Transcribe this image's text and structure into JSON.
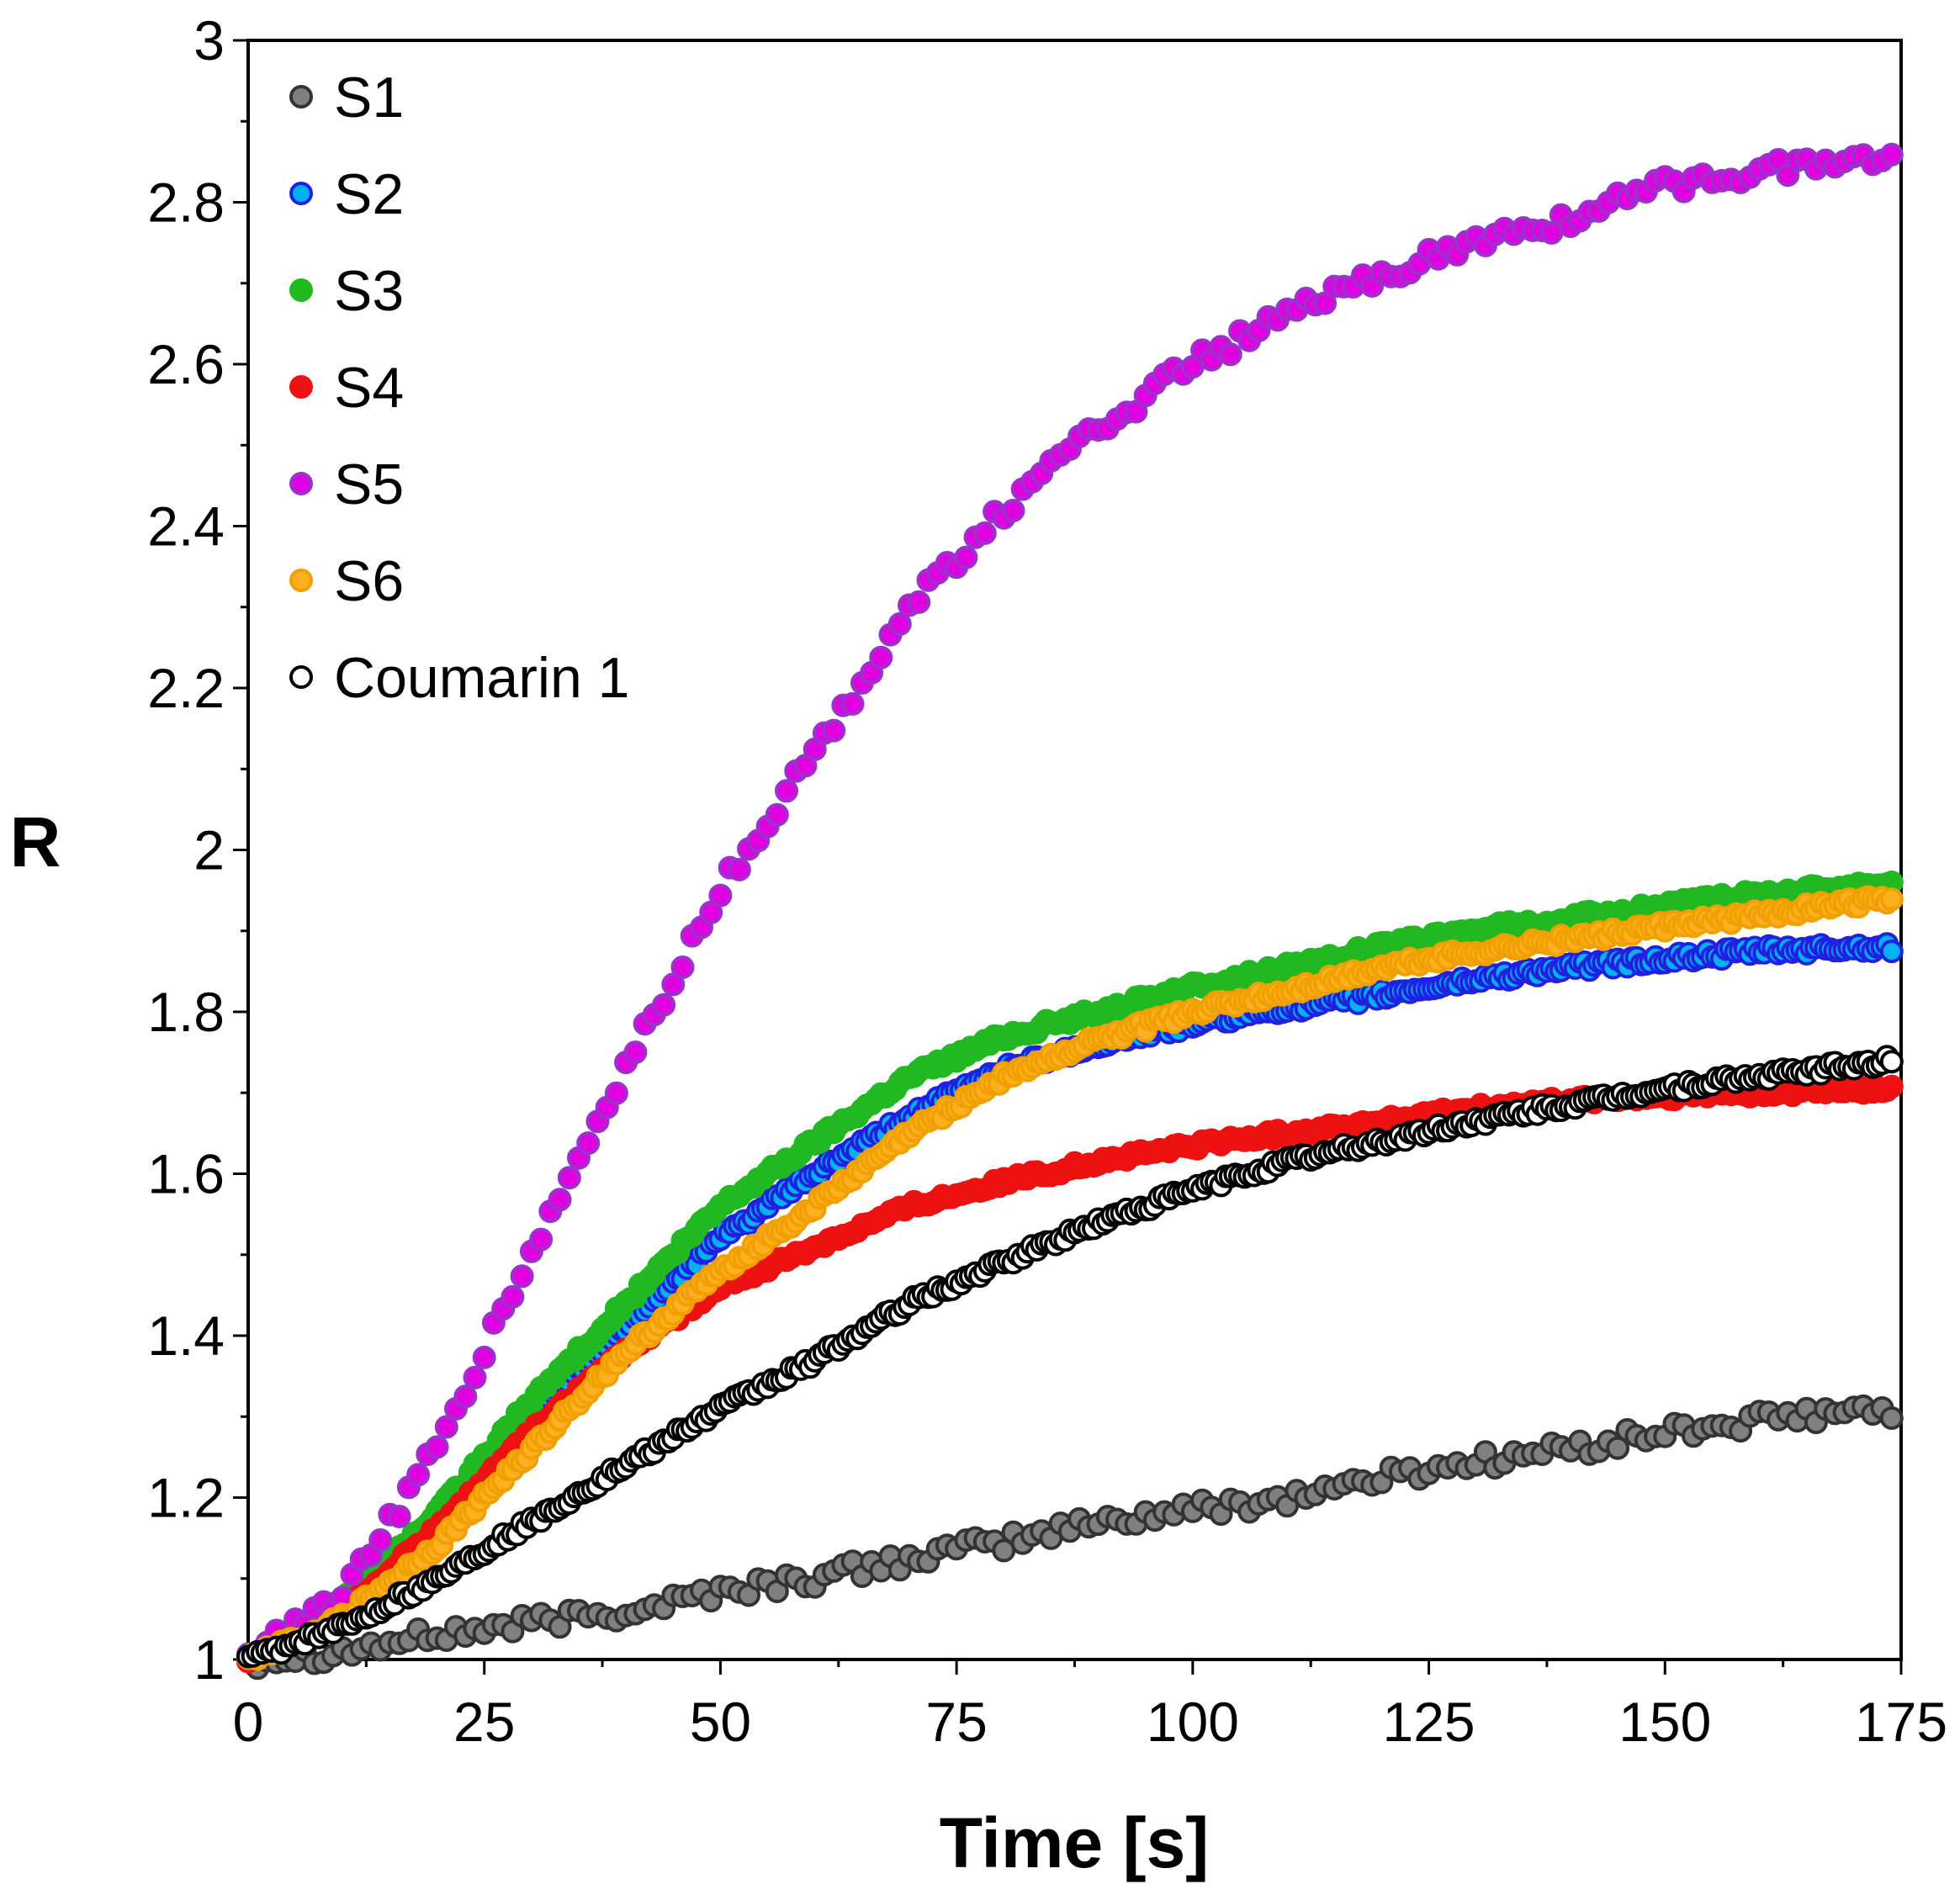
{
  "chart_data": {
    "type": "scatter",
    "title": "",
    "xlabel": "Time [s]",
    "ylabel": "R",
    "xlim": [
      0,
      175
    ],
    "ylim": [
      1,
      3
    ],
    "xticks": [
      "0",
      "25",
      "50",
      "75",
      "100",
      "125",
      "150",
      "175"
    ],
    "yticks": [
      "1",
      "1.2",
      "1.4",
      "1.6",
      "1.8",
      "2",
      "2.2",
      "2.4",
      "2.6",
      "2.8",
      "3"
    ],
    "grid": false,
    "legend_position": "top-left",
    "series": [
      {
        "name": "S1",
        "color": "#808080",
        "edge": "#333333",
        "key": [
          [
            0,
            1.0
          ],
          [
            10,
            1.01
          ],
          [
            20,
            1.03
          ],
          [
            30,
            1.045
          ],
          [
            40,
            1.06
          ],
          [
            50,
            1.085
          ],
          [
            60,
            1.1
          ],
          [
            70,
            1.125
          ],
          [
            80,
            1.145
          ],
          [
            90,
            1.17
          ],
          [
            100,
            1.185
          ],
          [
            110,
            1.2
          ],
          [
            120,
            1.225
          ],
          [
            130,
            1.245
          ],
          [
            140,
            1.26
          ],
          [
            150,
            1.28
          ],
          [
            160,
            1.295
          ],
          [
            174,
            1.31
          ]
        ],
        "noise": 0.012
      },
      {
        "name": "S2",
        "color": "#00B0F0",
        "edge": "#2020E0",
        "key": [
          [
            0,
            1.0
          ],
          [
            10,
            1.06
          ],
          [
            20,
            1.16
          ],
          [
            30,
            1.3
          ],
          [
            40,
            1.41
          ],
          [
            50,
            1.52
          ],
          [
            60,
            1.6
          ],
          [
            70,
            1.67
          ],
          [
            80,
            1.73
          ],
          [
            90,
            1.76
          ],
          [
            100,
            1.785
          ],
          [
            110,
            1.805
          ],
          [
            120,
            1.82
          ],
          [
            130,
            1.84
          ],
          [
            140,
            1.855
          ],
          [
            150,
            1.865
          ],
          [
            160,
            1.875
          ],
          [
            174,
            1.88
          ]
        ],
        "noise": 0.006
      },
      {
        "name": "S3",
        "color": "#22B822",
        "edge": "#22B822",
        "key": [
          [
            0,
            1.0
          ],
          [
            10,
            1.07
          ],
          [
            20,
            1.18
          ],
          [
            30,
            1.32
          ],
          [
            40,
            1.44
          ],
          [
            50,
            1.56
          ],
          [
            60,
            1.64
          ],
          [
            70,
            1.72
          ],
          [
            80,
            1.77
          ],
          [
            90,
            1.8
          ],
          [
            100,
            1.83
          ],
          [
            110,
            1.855
          ],
          [
            120,
            1.88
          ],
          [
            130,
            1.9
          ],
          [
            140,
            1.915
          ],
          [
            150,
            1.93
          ],
          [
            160,
            1.945
          ],
          [
            174,
            1.96
          ]
        ],
        "noise": 0.006
      },
      {
        "name": "S4",
        "color": "#EE1111",
        "edge": "#EE1111",
        "key": [
          [
            0,
            1.0
          ],
          [
            10,
            1.06
          ],
          [
            20,
            1.16
          ],
          [
            30,
            1.28
          ],
          [
            40,
            1.38
          ],
          [
            50,
            1.46
          ],
          [
            60,
            1.51
          ],
          [
            70,
            1.56
          ],
          [
            80,
            1.59
          ],
          [
            90,
            1.615
          ],
          [
            100,
            1.635
          ],
          [
            110,
            1.65
          ],
          [
            120,
            1.665
          ],
          [
            130,
            1.68
          ],
          [
            140,
            1.69
          ],
          [
            150,
            1.695
          ],
          [
            160,
            1.7
          ],
          [
            174,
            1.705
          ]
        ],
        "noise": 0.005
      },
      {
        "name": "S5",
        "color": "#E000E0",
        "edge": "#9933CC",
        "key": [
          [
            0,
            1.0
          ],
          [
            10,
            1.08
          ],
          [
            20,
            1.26
          ],
          [
            30,
            1.5
          ],
          [
            40,
            1.73
          ],
          [
            50,
            1.95
          ],
          [
            60,
            2.12
          ],
          [
            70,
            2.3
          ],
          [
            80,
            2.42
          ],
          [
            90,
            2.52
          ],
          [
            100,
            2.6
          ],
          [
            110,
            2.66
          ],
          [
            120,
            2.71
          ],
          [
            130,
            2.75
          ],
          [
            140,
            2.78
          ],
          [
            150,
            2.82
          ],
          [
            160,
            2.84
          ],
          [
            174,
            2.86
          ]
        ],
        "noise": 0.012
      },
      {
        "name": "S6",
        "color": "#FFB020",
        "edge": "#F0A000",
        "key": [
          [
            0,
            1.0
          ],
          [
            10,
            1.05
          ],
          [
            20,
            1.14
          ],
          [
            30,
            1.26
          ],
          [
            40,
            1.38
          ],
          [
            50,
            1.48
          ],
          [
            60,
            1.56
          ],
          [
            70,
            1.65
          ],
          [
            80,
            1.72
          ],
          [
            90,
            1.765
          ],
          [
            100,
            1.8
          ],
          [
            110,
            1.825
          ],
          [
            120,
            1.855
          ],
          [
            130,
            1.875
          ],
          [
            140,
            1.89
          ],
          [
            150,
            1.905
          ],
          [
            160,
            1.92
          ],
          [
            174,
            1.94
          ]
        ],
        "noise": 0.006
      },
      {
        "name": "Coumarin 1",
        "color": "#FFFFFF",
        "edge": "#000000",
        "key": [
          [
            0,
            1.0
          ],
          [
            10,
            1.04
          ],
          [
            20,
            1.1
          ],
          [
            30,
            1.17
          ],
          [
            40,
            1.24
          ],
          [
            50,
            1.31
          ],
          [
            60,
            1.37
          ],
          [
            70,
            1.44
          ],
          [
            80,
            1.49
          ],
          [
            90,
            1.54
          ],
          [
            100,
            1.58
          ],
          [
            110,
            1.615
          ],
          [
            120,
            1.64
          ],
          [
            130,
            1.665
          ],
          [
            140,
            1.685
          ],
          [
            150,
            1.705
          ],
          [
            160,
            1.72
          ],
          [
            174,
            1.74
          ]
        ],
        "noise": 0.006
      }
    ]
  }
}
